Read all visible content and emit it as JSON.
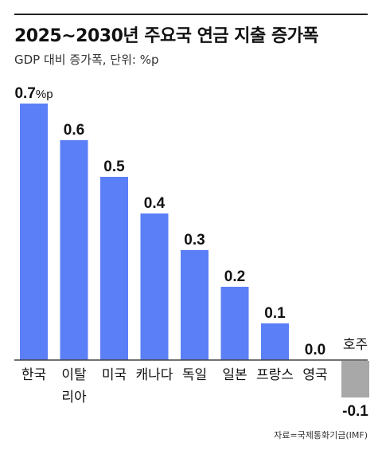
{
  "header": {
    "title": "2025~2030년 주요국 연금 지출 증가폭",
    "subtitle": "GDP 대비 증가폭, 단위: %p"
  },
  "footer": {
    "source": "자료=국제통화기금(IMF)"
  },
  "chart_data": {
    "type": "bar",
    "title": "2025~2030년 주요국 연금 지출 증가폭",
    "subtitle": "GDP 대비 증가폭, 단위: %p",
    "unit": "%p",
    "categories": [
      "한국",
      "이탈리아",
      "미국",
      "캐나다",
      "독일",
      "일본",
      "프랑스",
      "영국",
      "호주"
    ],
    "category_lines": [
      [
        "한국"
      ],
      [
        "이탈",
        "리아"
      ],
      [
        "미국"
      ],
      [
        "캐나다"
      ],
      [
        "독일"
      ],
      [
        "일본"
      ],
      [
        "프랑스"
      ],
      [
        "영국"
      ],
      [
        "호주"
      ]
    ],
    "value_labels": [
      "0.7",
      "0.6",
      "0.5",
      "0.4",
      "0.3",
      "0.2",
      "0.1",
      "0.0",
      "-0.1"
    ],
    "values": [
      0.7,
      0.6,
      0.5,
      0.4,
      0.3,
      0.2,
      0.1,
      0.0,
      -0.1
    ],
    "ylim": [
      -0.1,
      0.7
    ],
    "grid": false,
    "colors": {
      "positive": "#5b7ff7",
      "negative": "#a8a8a8",
      "baseline": "#444444"
    }
  }
}
